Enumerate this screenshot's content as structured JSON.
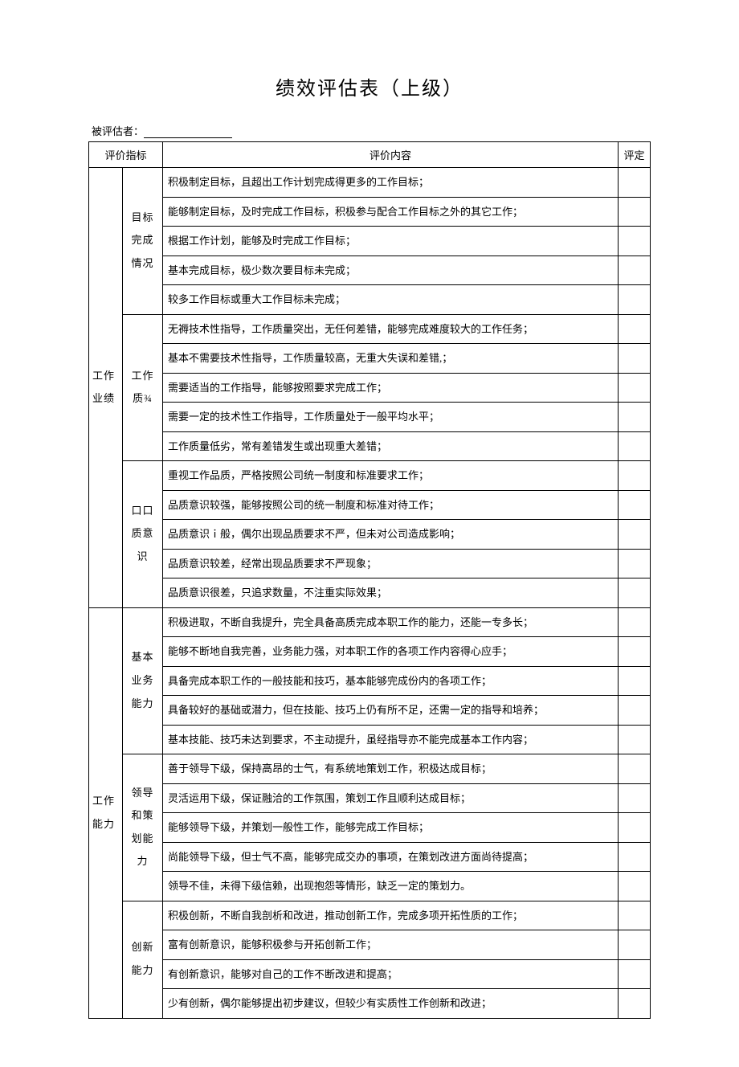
{
  "title": "绩效评估表（上级）",
  "evaluatee_label": "被评估者：",
  "headers": {
    "indicator": "评价指标",
    "content": "评价内容",
    "rating": "评定"
  },
  "groups": [
    {
      "cat1": "工作业绩",
      "subs": [
        {
          "cat2": "目标完成情况",
          "items": [
            "积极制定目标，且超出工作计划完成得更多的工作目标；",
            "能够制定目标，及时完成工作目标，积极参与配合工作目标之外的其它工作；",
            "根据工作计划，能够及时完成工作目标；",
            "基本完成目标，极少数次要目标未完成；",
            "较多工作目标或重大工作目标未完成；"
          ]
        },
        {
          "cat2": "工作质¾",
          "items": [
            "无褥技术性指导，工作质量突出，无任何差错，能够完成难度较大的工作任务；",
            "基本不需要技术性指导，工作质量较高，无重大失误和差错,；",
            "需要适当的工作指导，能够按照要求完成工作；",
            "需要一定的技术性工作指导，工作质量处于一般平均水平；",
            "工作质量低劣，常有差错发生或出现重大差错；"
          ]
        },
        {
          "cat2": "口口质意识",
          "items": [
            "重视工作品质，严格按照公司统一制度和标准要求工作；",
            "品质意识较强，能够按照公司的统一制度和标准对待工作；",
            "品质意识ｉ般，偶尔出现品质要求不严，但未对公司造成影响；",
            "品质意识较差，经常出现品质要求不严现象；",
            "品质意识很差，只追求数量，不注重实际效果；"
          ]
        }
      ]
    },
    {
      "cat1": "工作能力",
      "subs": [
        {
          "cat2": "基本业务能力",
          "items": [
            "积极进取，不断自我提升，完全具备高质完成本职工作的能力，还能一专多长；",
            "能够不断地自我完善，业务能力强，对本职工作的各项工作内容得心应手；",
            "具备完成本职工作的一般技能和技巧，基本能够完成份内的各项工作；",
            "具备较好的基础或潜力，但在技能、技巧上仍有所不足，还需一定的指导和培养；",
            "基本技能、技巧未达到要求，不主动提升，虽经指导亦不能完成基本工作内容；"
          ]
        },
        {
          "cat2": "领导和策划能力",
          "items": [
            "善于领导下级，保持高昂的士气，有系统地策划工作，积极达成目标；",
            "灵活运用下级，保证融洽的工作氛围，策划工作且顺利达成目标；",
            "能够领导下级，并策划一般性工作，能够完成工作目标；",
            "尚能领导下级，但士气不高，能够完成交办的事项，在策划改进方面尚待提高；",
            "领导不佳，未得下级信赖，出现抱怨等情形，缺乏一定的策划力。"
          ]
        },
        {
          "cat2": "创新能力",
          "items": [
            "积极创新，不断自我剖析和改进，推动创新工作，完成多项开拓性质的工作；",
            "富有创新意识，能够积极参与开拓创新工作；",
            "有创新意识，能够对自己的工作不断改进和提高；",
            "少有创新，偶尔能够提出初步建议，但较少有实质性工作创新和改进；"
          ]
        }
      ]
    }
  ],
  "style": {
    "font_family": "SimSun",
    "border_color": "#000000",
    "background_color": "#ffffff",
    "text_color": "#000000",
    "title_fontsize": 24,
    "body_fontsize": 13,
    "col_widths": {
      "cat1": 42,
      "cat2": 50,
      "rating": 40
    }
  }
}
